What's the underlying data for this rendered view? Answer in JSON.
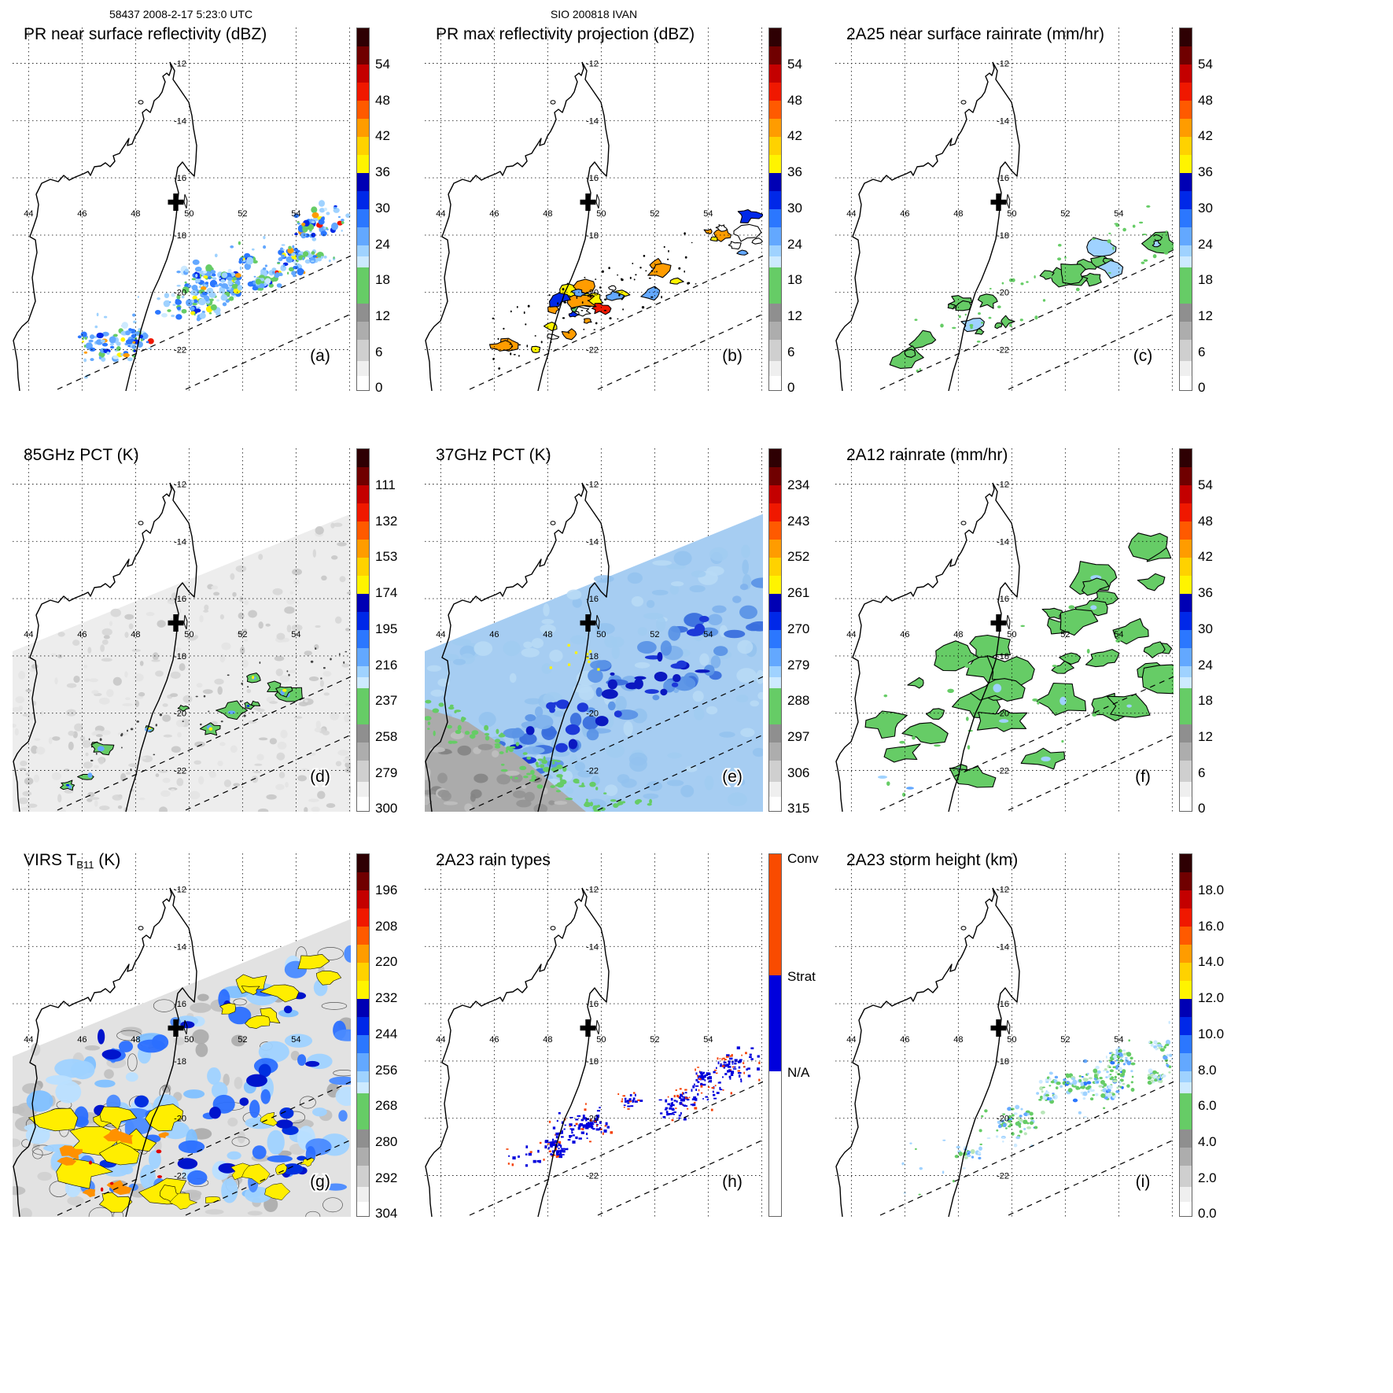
{
  "figure": {
    "header_left": "58437 2008-2-17 5:23:0 UTC",
    "header_center": "SIO 200818 IVAN"
  },
  "axis": {
    "lon_labels": [
      "44",
      "46",
      "48",
      "50",
      "52",
      "54"
    ],
    "lat_labels": [
      "-12",
      "-14",
      "-16",
      "-18",
      "-20",
      "-22"
    ]
  },
  "palettes": {
    "rain": [
      {
        "c": "#2e0003",
        "f": 5
      },
      {
        "c": "#700000",
        "f": 5
      },
      {
        "c": "#c40000",
        "f": 5
      },
      {
        "c": "#f01800",
        "f": 5
      },
      {
        "c": "#ff5a00",
        "f": 5
      },
      {
        "c": "#ff9c00",
        "f": 5
      },
      {
        "c": "#ffd200",
        "f": 5
      },
      {
        "c": "#fff400",
        "f": 5
      },
      {
        "c": "#0000b4",
        "f": 5
      },
      {
        "c": "#0028e8",
        "f": 5
      },
      {
        "c": "#2b77ff",
        "f": 5
      },
      {
        "c": "#63a8ff",
        "f": 5
      },
      {
        "c": "#9fd2ff",
        "f": 3
      },
      {
        "c": "#cdeaff",
        "f": 3
      },
      {
        "c": "#66cc66",
        "f": 10
      },
      {
        "c": "#8f8f8f",
        "f": 5
      },
      {
        "c": "#adadad",
        "f": 5
      },
      {
        "c": "#cfcfcf",
        "f": 6
      },
      {
        "c": "#efefef",
        "f": 4
      },
      {
        "c": "#ffffff",
        "f": 4
      }
    ],
    "raintype": [
      {
        "c": "#f94b00",
        "f": 33.5
      },
      {
        "c": "#0000dc",
        "f": 26.5
      },
      {
        "c": "#ffffff",
        "f": 40
      }
    ]
  },
  "panels": [
    {
      "id": "a",
      "letter": "(a)",
      "title": "PR near surface reflectivity (dBZ)",
      "palette": "rain",
      "ticks": [
        "54",
        "48",
        "42",
        "36",
        "30",
        "24",
        "18",
        "12",
        "6",
        "0"
      ],
      "field": "pr_reflectivity",
      "seed": 101
    },
    {
      "id": "b",
      "letter": "(b)",
      "title": "PR max reflectivity projection (dBZ)",
      "palette": "rain",
      "ticks": [
        "54",
        "48",
        "42",
        "36",
        "30",
        "24",
        "18",
        "12",
        "6",
        "0"
      ],
      "field": "pr_outlined",
      "seed": 202
    },
    {
      "id": "c",
      "letter": "(c)",
      "title": "2A25 near surface rainrate (mm/hr)",
      "palette": "rain",
      "ticks": [
        "54",
        "48",
        "42",
        "36",
        "30",
        "24",
        "18",
        "12",
        "6",
        "0"
      ],
      "field": "rain_green",
      "seed": 303
    },
    {
      "id": "d",
      "letter": "(d)",
      "title": "85GHz PCT (K)",
      "palette": "rain",
      "ticks": [
        "111",
        "132",
        "153",
        "174",
        "195",
        "216",
        "237",
        "258",
        "279",
        "300"
      ],
      "field": "pct85",
      "seed": 404
    },
    {
      "id": "e",
      "letter": "(e)",
      "title": "37GHz PCT (K)",
      "palette": "rain",
      "ticks": [
        "234",
        "243",
        "252",
        "261",
        "270",
        "279",
        "288",
        "297",
        "306",
        "315"
      ],
      "field": "pct37",
      "seed": 505
    },
    {
      "id": "f",
      "letter": "(f)",
      "title": "2A12 rainrate (mm/hr)",
      "palette": "rain",
      "ticks": [
        "54",
        "48",
        "42",
        "36",
        "30",
        "24",
        "18",
        "12",
        "6",
        "0"
      ],
      "field": "tmi_rain",
      "seed": 606
    },
    {
      "id": "g",
      "letter": "(g)",
      "title_pre": "VIRS T",
      "title_sub": "B11",
      "title_post": " (K)",
      "palette": "rain",
      "ticks": [
        "196",
        "208",
        "220",
        "232",
        "244",
        "256",
        "268",
        "280",
        "292",
        "304"
      ],
      "field": "virs",
      "seed": 707
    },
    {
      "id": "h",
      "letter": "(h)",
      "title": "2A23 rain types",
      "palette": "raintype",
      "cbar_labels": [
        "Conv",
        "Strat",
        "N/A"
      ],
      "field": "rain_types",
      "seed": 808
    },
    {
      "id": "i",
      "letter": "(i)",
      "title": "2A23 storm height (km)",
      "palette": "rain",
      "ticks": [
        "18.0",
        "16.0",
        "14.0",
        "12.0",
        "10.0",
        "8.0",
        "6.0",
        "4.0",
        "2.0",
        "0.0"
      ],
      "field": "storm_height",
      "seed": 909
    }
  ]
}
